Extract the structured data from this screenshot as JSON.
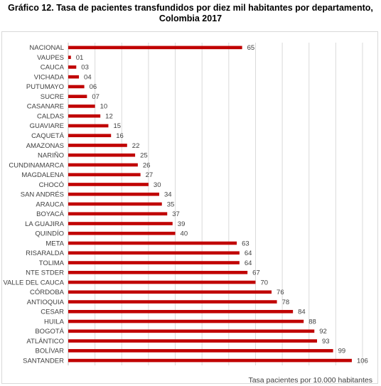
{
  "chart_data": {
    "type": "bar",
    "orientation": "horizontal",
    "title": "Gráfico 12. Tasa de pacientes transfundidos por diez mil habitantes por departamento, Colombia 2017",
    "title_line1": "Gráfico 12. Tasa de pacientes transfundidos por diez mil habitantes por departamento,",
    "title_line2": "Colombia 2017",
    "xlabel": "Tasa pacientes por 10.000 habitantes",
    "ylabel": "",
    "xlim": [
      0,
      110
    ],
    "grid": true,
    "bar_color": "#c00000",
    "categories": [
      "NACIONAL",
      "VAUPES",
      "CAUCA",
      "VICHADA",
      "PUTUMAYO",
      "SUCRE",
      "CASANARE",
      "CALDAS",
      "GUAVIARE",
      "CAQUETÁ",
      "AMAZONAS",
      "NARIÑO",
      "CUNDINAMARCA",
      "MAGDALENA",
      "CHOCÓ",
      "SAN ANDRÉS",
      "ARAUCA",
      "BOYACÁ",
      "LA GUAJIRA",
      "QUINDÍO",
      "META",
      "RISARALDA",
      "TOLIMA",
      "NTE STDER",
      "VALLE DEL CAUCA",
      "CÓRDOBA",
      "ANTIOQUIA",
      "CESAR",
      "HUILA",
      "BOGOTÁ",
      "ATLÁNTICO",
      "BOLÍVAR",
      "SANTANDER"
    ],
    "values": [
      65,
      1,
      3,
      4,
      6,
      7,
      10,
      12,
      15,
      16,
      22,
      25,
      26,
      27,
      30,
      34,
      35,
      37,
      39,
      40,
      63,
      64,
      64,
      67,
      70,
      76,
      78,
      84,
      88,
      92,
      93,
      99,
      106
    ],
    "value_labels": [
      "65",
      "01",
      "03",
      "04",
      "06",
      "07",
      "10",
      "12",
      "15",
      "16",
      "22",
      "25",
      "26",
      "27",
      "30",
      "34",
      "35",
      "37",
      "39",
      "40",
      "63",
      "64",
      "64",
      "67",
      "70",
      "76",
      "78",
      "84",
      "88",
      "92",
      "93",
      "99",
      "106"
    ]
  }
}
